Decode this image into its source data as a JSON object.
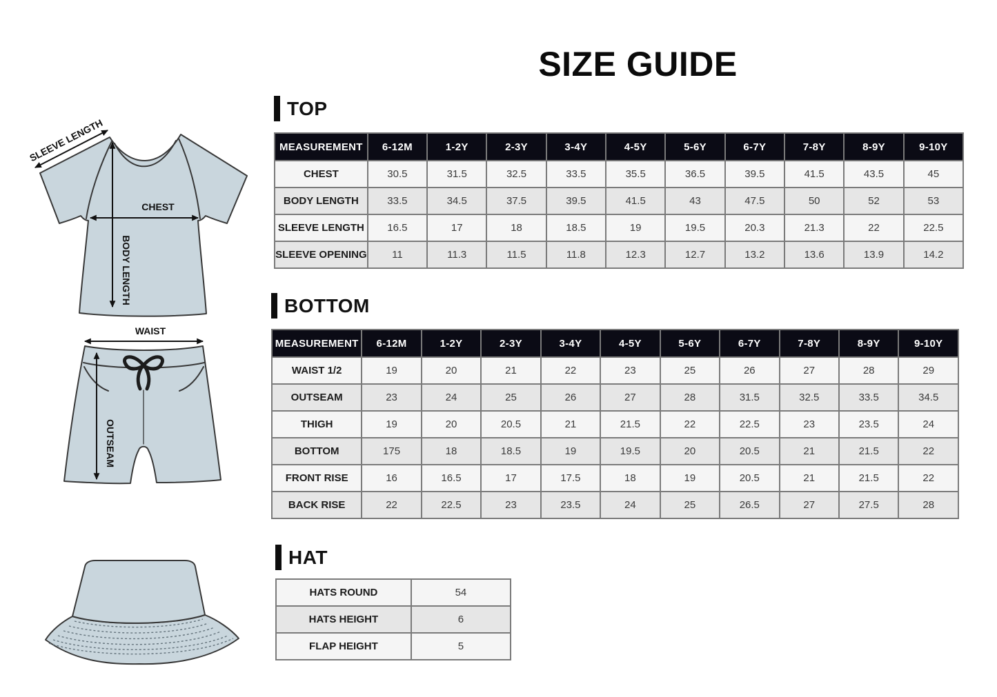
{
  "page": {
    "title": "SIZE GUIDE"
  },
  "colors": {
    "table_header_bg": "#0b0b15",
    "table_border": "#7a7a7a",
    "row_light": "#f5f5f5",
    "row_shaded": "#e6e6e6",
    "garment_fill": "#c9d6dd"
  },
  "illustrations": {
    "tshirt": {
      "labels": {
        "sleeve_length": "SLEEVE LENGTH",
        "chest": "CHEST",
        "body_length": "BODY LENGTH"
      }
    },
    "shorts": {
      "labels": {
        "waist": "WAIST",
        "outseam": "OUTSEAM"
      }
    }
  },
  "sections": [
    {
      "id": "top",
      "title": "TOP",
      "table": {
        "header": [
          "MEASUREMENT",
          "6-12M",
          "1-2Y",
          "2-3Y",
          "3-4Y",
          "4-5Y",
          "5-6Y",
          "6-7Y",
          "7-8Y",
          "8-9Y",
          "9-10Y"
        ],
        "rows": [
          [
            "CHEST",
            "30.5",
            "31.5",
            "32.5",
            "33.5",
            "35.5",
            "36.5",
            "39.5",
            "41.5",
            "43.5",
            "45"
          ],
          [
            "BODY LENGTH",
            "33.5",
            "34.5",
            "37.5",
            "39.5",
            "41.5",
            "43",
            "47.5",
            "50",
            "52",
            "53"
          ],
          [
            "SLEEVE LENGTH",
            "16.5",
            "17",
            "18",
            "18.5",
            "19",
            "19.5",
            "20.3",
            "21.3",
            "22",
            "22.5"
          ],
          [
            "SLEEVE OPENING",
            "11",
            "11.3",
            "11.5",
            "11.8",
            "12.3",
            "12.7",
            "13.2",
            "13.6",
            "13.9",
            "14.2"
          ]
        ]
      }
    },
    {
      "id": "bottom",
      "title": "BOTTOM",
      "table": {
        "header": [
          "MEASUREMENT",
          "6-12M",
          "1-2Y",
          "2-3Y",
          "3-4Y",
          "4-5Y",
          "5-6Y",
          "6-7Y",
          "7-8Y",
          "8-9Y",
          "9-10Y"
        ],
        "rows": [
          [
            "WAIST 1/2",
            "19",
            "20",
            "21",
            "22",
            "23",
            "25",
            "26",
            "27",
            "28",
            "29"
          ],
          [
            "OUTSEAM",
            "23",
            "24",
            "25",
            "26",
            "27",
            "28",
            "31.5",
            "32.5",
            "33.5",
            "34.5"
          ],
          [
            "THIGH",
            "19",
            "20",
            "20.5",
            "21",
            "21.5",
            "22",
            "22.5",
            "23",
            "23.5",
            "24"
          ],
          [
            "BOTTOM",
            "175",
            "18",
            "18.5",
            "19",
            "19.5",
            "20",
            "20.5",
            "21",
            "21.5",
            "22"
          ],
          [
            "FRONT RISE",
            "16",
            "16.5",
            "17",
            "17.5",
            "18",
            "19",
            "20.5",
            "21",
            "21.5",
            "22"
          ],
          [
            "BACK RISE",
            "22",
            "22.5",
            "23",
            "23.5",
            "24",
            "25",
            "26.5",
            "27",
            "27.5",
            "28"
          ]
        ]
      }
    },
    {
      "id": "hat",
      "title": "HAT",
      "table": {
        "header": [],
        "rows": [
          [
            "HATS ROUND",
            "54"
          ],
          [
            "HATS HEIGHT",
            "6"
          ],
          [
            "FLAP HEIGHT",
            "5"
          ]
        ]
      }
    }
  ]
}
